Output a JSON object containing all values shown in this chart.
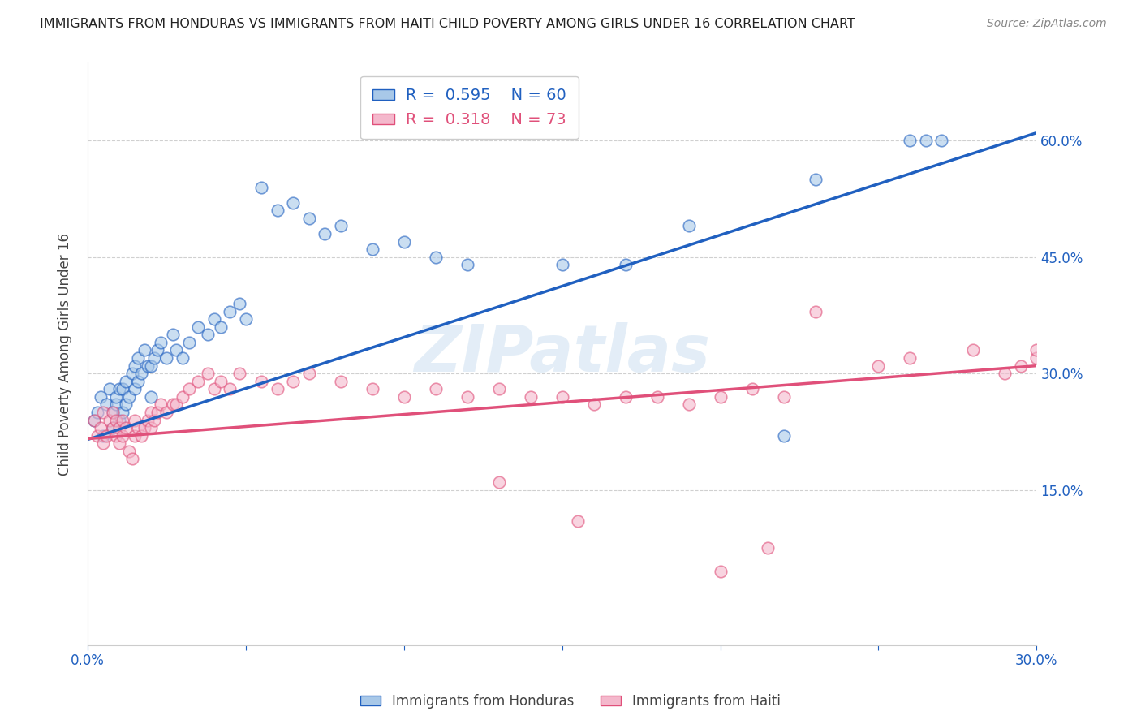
{
  "title": "IMMIGRANTS FROM HONDURAS VS IMMIGRANTS FROM HAITI CHILD POVERTY AMONG GIRLS UNDER 16 CORRELATION CHART",
  "source": "Source: ZipAtlas.com",
  "ylabel": "Child Poverty Among Girls Under 16",
  "xlim": [
    0.0,
    0.3
  ],
  "ylim": [
    -0.05,
    0.7
  ],
  "color_blue": "#a8c8e8",
  "color_pink": "#f4b8cc",
  "line_blue": "#2060c0",
  "line_pink": "#e0507a",
  "legend_label1": "Immigrants from Honduras",
  "legend_label2": "Immigrants from Haiti",
  "watermark": "ZIPatlas",
  "blue_line_x0": 0.0,
  "blue_line_y0": 0.215,
  "blue_line_x1": 0.3,
  "blue_line_y1": 0.61,
  "pink_line_x0": 0.0,
  "pink_line_y0": 0.216,
  "pink_line_x1": 0.3,
  "pink_line_y1": 0.31,
  "honduras_x": [
    0.002,
    0.003,
    0.004,
    0.005,
    0.006,
    0.007,
    0.008,
    0.008,
    0.009,
    0.009,
    0.01,
    0.01,
    0.011,
    0.011,
    0.012,
    0.012,
    0.013,
    0.014,
    0.015,
    0.015,
    0.016,
    0.016,
    0.017,
    0.018,
    0.019,
    0.02,
    0.02,
    0.021,
    0.022,
    0.023,
    0.025,
    0.027,
    0.028,
    0.03,
    0.032,
    0.035,
    0.038,
    0.04,
    0.042,
    0.045,
    0.048,
    0.05,
    0.055,
    0.06,
    0.065,
    0.07,
    0.075,
    0.08,
    0.09,
    0.1,
    0.11,
    0.12,
    0.15,
    0.17,
    0.19,
    0.22,
    0.23,
    0.26,
    0.265,
    0.27
  ],
  "honduras_y": [
    0.24,
    0.25,
    0.27,
    0.22,
    0.26,
    0.28,
    0.23,
    0.25,
    0.26,
    0.27,
    0.24,
    0.28,
    0.25,
    0.28,
    0.26,
    0.29,
    0.27,
    0.3,
    0.28,
    0.31,
    0.29,
    0.32,
    0.3,
    0.33,
    0.31,
    0.27,
    0.31,
    0.32,
    0.33,
    0.34,
    0.32,
    0.35,
    0.33,
    0.32,
    0.34,
    0.36,
    0.35,
    0.37,
    0.36,
    0.38,
    0.39,
    0.37,
    0.54,
    0.51,
    0.52,
    0.5,
    0.48,
    0.49,
    0.46,
    0.47,
    0.45,
    0.44,
    0.44,
    0.44,
    0.49,
    0.22,
    0.55,
    0.6,
    0.6,
    0.6
  ],
  "haiti_x": [
    0.002,
    0.003,
    0.004,
    0.005,
    0.005,
    0.006,
    0.007,
    0.008,
    0.008,
    0.009,
    0.009,
    0.01,
    0.01,
    0.011,
    0.011,
    0.012,
    0.013,
    0.014,
    0.015,
    0.015,
    0.016,
    0.017,
    0.018,
    0.019,
    0.02,
    0.02,
    0.021,
    0.022,
    0.023,
    0.025,
    0.027,
    0.028,
    0.03,
    0.032,
    0.035,
    0.038,
    0.04,
    0.042,
    0.045,
    0.048,
    0.055,
    0.06,
    0.065,
    0.07,
    0.08,
    0.09,
    0.1,
    0.11,
    0.12,
    0.13,
    0.14,
    0.15,
    0.16,
    0.17,
    0.18,
    0.19,
    0.2,
    0.21,
    0.22,
    0.23,
    0.25,
    0.26,
    0.28,
    0.29,
    0.295,
    0.3,
    0.3,
    0.13,
    0.155,
    0.2,
    0.215
  ],
  "haiti_y": [
    0.24,
    0.22,
    0.23,
    0.21,
    0.25,
    0.22,
    0.24,
    0.23,
    0.25,
    0.22,
    0.24,
    0.21,
    0.23,
    0.22,
    0.24,
    0.23,
    0.2,
    0.19,
    0.22,
    0.24,
    0.23,
    0.22,
    0.23,
    0.24,
    0.23,
    0.25,
    0.24,
    0.25,
    0.26,
    0.25,
    0.26,
    0.26,
    0.27,
    0.28,
    0.29,
    0.3,
    0.28,
    0.29,
    0.28,
    0.3,
    0.29,
    0.28,
    0.29,
    0.3,
    0.29,
    0.28,
    0.27,
    0.28,
    0.27,
    0.28,
    0.27,
    0.27,
    0.26,
    0.27,
    0.27,
    0.26,
    0.27,
    0.28,
    0.27,
    0.38,
    0.31,
    0.32,
    0.33,
    0.3,
    0.31,
    0.32,
    0.33,
    0.16,
    0.11,
    0.045,
    0.075
  ]
}
